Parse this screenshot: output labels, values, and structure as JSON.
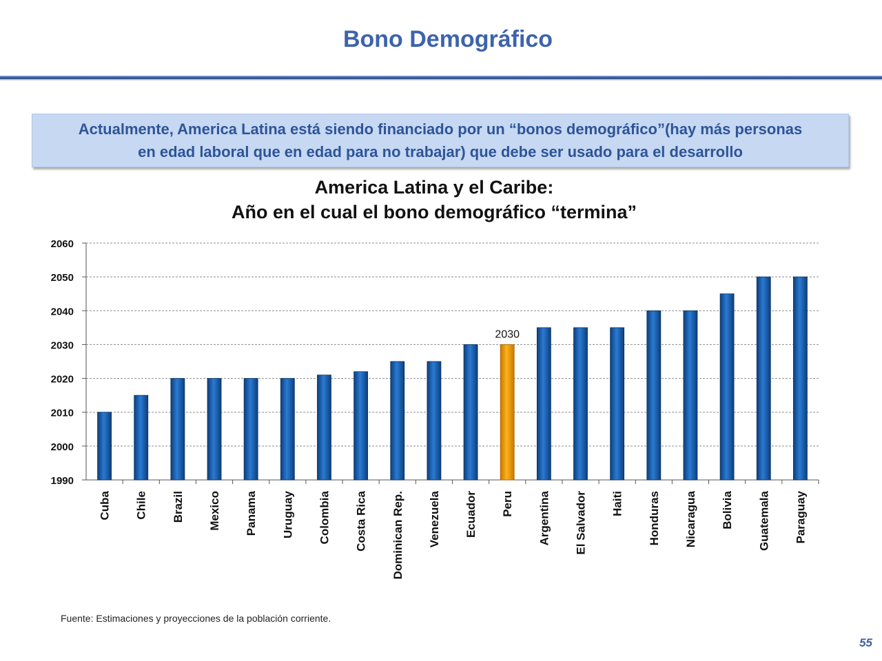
{
  "slide": {
    "title": "Bono Demográfico",
    "banner_line1": "Actualmente,  America Latina está siendo financiado por un “bonos demográfico”(hay más personas",
    "banner_line2": "en edad laboral que  en edad para no trabajar)  que debe ser usado para el desarrollo",
    "source": "Fuente: Estimaciones y proyecciones de la población corriente.",
    "page_number": "55"
  },
  "colors": {
    "title": "#3d63ad",
    "bar": "#1f6bbf",
    "highlight_bar": "#f5a20a",
    "banner_bg": "#c6d8f2"
  },
  "chart_data": {
    "type": "bar",
    "title_line1": "America Latina y el Caribe:",
    "title_line2": "Año en el cual el bono demográfico “termina”",
    "xlabel": "",
    "ylabel": "",
    "ylim": [
      1990,
      2060
    ],
    "yticks": [
      1990,
      2000,
      2010,
      2020,
      2030,
      2040,
      2050,
      2060
    ],
    "grid": "horizontal-dashed",
    "categories": [
      "Cuba",
      "Chile",
      "Brazil",
      "Mexico",
      "Panama",
      "Uruguay",
      "Colombia",
      "Costa Rica",
      "Dominican Rep.",
      "Venezuela",
      "Ecuador",
      "Peru",
      "Argentina",
      "El Salvador",
      "Haiti",
      "Honduras",
      "Nicaragua",
      "Bolivia",
      "Guatemala",
      "Paraguay"
    ],
    "values": [
      2010,
      2015,
      2020,
      2020,
      2020,
      2020,
      2021,
      2022,
      2025,
      2025,
      2030,
      2030,
      2035,
      2035,
      2035,
      2040,
      2040,
      2045,
      2050,
      2050
    ],
    "highlight": "Peru",
    "annotation": {
      "category": "Peru",
      "label": "2030"
    }
  }
}
